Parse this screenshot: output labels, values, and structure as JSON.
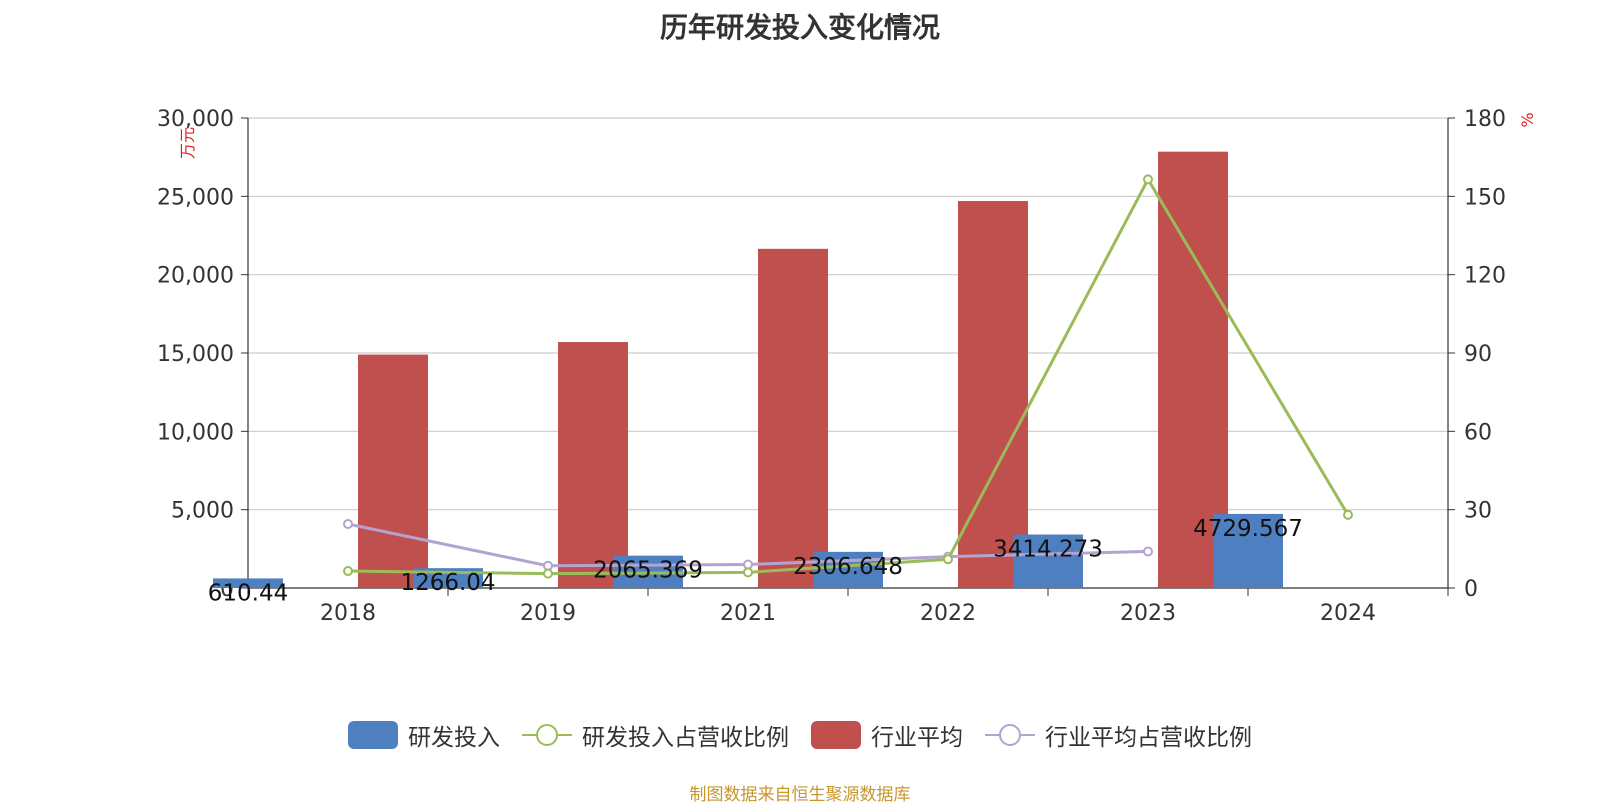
{
  "chart_data": {
    "type": "bar",
    "title": "历年研发投入变化情况",
    "categories": [
      "2018",
      "2019",
      "2021",
      "2022",
      "2023",
      "2024"
    ],
    "ylabel_left": "万元",
    "ylabel_right": "%",
    "ylim_left": [
      0,
      30000
    ],
    "ylim_right": [
      0,
      180
    ],
    "yticks_left": [
      "0",
      "5,000",
      "10,000",
      "15,000",
      "20,000",
      "25,000",
      "30,000"
    ],
    "yticks_right": [
      "0",
      "30",
      "60",
      "90",
      "120",
      "150",
      "180"
    ],
    "grid": true,
    "legend_position": "bottom",
    "series": [
      {
        "name": "研发投入",
        "type": "bar",
        "axis": "left",
        "color": "#4e7fc0",
        "values": [
          610.44,
          1266.04,
          2065.369,
          2306.648,
          3414.273,
          4729.567
        ],
        "labels": [
          "610.44",
          "1266.04",
          "2065.369",
          "2306.648",
          "3414.273",
          "4729.567"
        ]
      },
      {
        "name": "研发投入占营收比例",
        "type": "line",
        "axis": "right",
        "color": "#9bbb59",
        "values": [
          6.5,
          5.5,
          6.0,
          11.0,
          156.5,
          28.0
        ]
      },
      {
        "name": "行业平均",
        "type": "bar",
        "axis": "left",
        "color": "#c0504d",
        "values": [
          14900,
          15700,
          21650,
          24700,
          27850,
          null
        ]
      },
      {
        "name": "行业平均占营收比例",
        "type": "line",
        "axis": "right",
        "color": "#b3a4cf",
        "values": [
          24.5,
          8.5,
          9.0,
          12.0,
          14.0,
          null
        ]
      }
    ]
  },
  "source": "制图数据来自恒生聚源数据库"
}
